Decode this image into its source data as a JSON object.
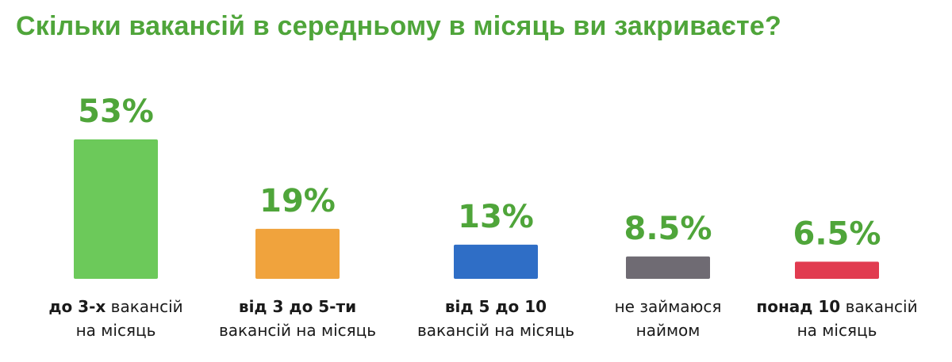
{
  "title": "Скільки вакансій в середньому в місяць ви закриваєте?",
  "colors": {
    "title": "#4fa53a",
    "value_label": "#4fa53a",
    "text": "#1a1a1a"
  },
  "chart_data": {
    "type": "bar",
    "title": "Скільки вакансій в середньому в місяць ви закриваєте?",
    "unit": "%",
    "categories": [
      "до 3-х вакансій на місяць",
      "від 3 до 5-ти вакансій на місяць",
      "від 5 до 10 вакансій на місяць",
      "не займаюся наймом",
      "понад 10 вакансій на місяць"
    ],
    "values": [
      53,
      19,
      13,
      8.5,
      6.5
    ],
    "value_labels": [
      "53%",
      "19%",
      "13%",
      "8.5%",
      "6.5%"
    ],
    "bar_colors": [
      "#6cc95a",
      "#f0a33d",
      "#2f6ec6",
      "#6f6b73",
      "#e13b50"
    ],
    "grid": false,
    "legend": "none"
  },
  "labels": [
    {
      "bold": "до 3-х",
      "rest": " вакансій",
      "line2": "на місяць"
    },
    {
      "bold": "від 3 до 5-ти",
      "rest": "",
      "line2": "вакансій на місяць"
    },
    {
      "bold": "від 5 до 10",
      "rest": "",
      "line2": "вакансій на місяць"
    },
    {
      "bold": "",
      "rest": "не займаюся",
      "line2": "наймом"
    },
    {
      "bold": "понад 10",
      "rest": " вакансій",
      "line2": "на місяць"
    }
  ]
}
